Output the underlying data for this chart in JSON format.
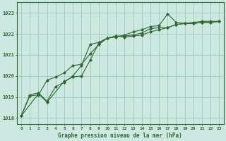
{
  "background_color": "#cce8e0",
  "grid_color": "#99ccbb",
  "line_color": "#2d6a2d",
  "title": "Graphe pression niveau de la mer (hPa)",
  "xlim": [
    -0.5,
    23.5
  ],
  "ylim": [
    1017.7,
    1023.5
  ],
  "yticks": [
    1018,
    1019,
    1020,
    1021,
    1022,
    1023
  ],
  "xticks": [
    0,
    1,
    2,
    3,
    4,
    5,
    6,
    7,
    8,
    9,
    10,
    11,
    12,
    13,
    14,
    15,
    16,
    17,
    18,
    19,
    20,
    21,
    22,
    23
  ],
  "series": [
    {
      "x": [
        0,
        1,
        2,
        3,
        4,
        5,
        6,
        7,
        8,
        9,
        10,
        11,
        12,
        13,
        14,
        15,
        16,
        17,
        18,
        19,
        20,
        21,
        22,
        23
      ],
      "y": [
        1018.1,
        1019.1,
        1019.2,
        1018.8,
        1019.5,
        1019.7,
        1020.0,
        1020.5,
        1021.5,
        1021.6,
        1021.8,
        1021.9,
        1021.85,
        1021.9,
        1021.95,
        1022.1,
        1022.2,
        1022.3,
        1022.45,
        1022.5,
        1022.5,
        1022.55,
        1022.55,
        1022.6
      ]
    },
    {
      "x": [
        0,
        1,
        2,
        3,
        4,
        5,
        6,
        7,
        8,
        9,
        10,
        11,
        12,
        13,
        14,
        15,
        16,
        17,
        18,
        19,
        20,
        21,
        22,
        23
      ],
      "y": [
        1018.1,
        1019.05,
        1019.1,
        1019.8,
        1019.95,
        1020.15,
        1020.5,
        1020.55,
        1021.05,
        1021.5,
        1021.8,
        1021.9,
        1021.9,
        1021.95,
        1022.05,
        1022.25,
        1022.3,
        1022.3,
        1022.45,
        1022.5,
        1022.5,
        1022.55,
        1022.55,
        1022.6
      ]
    },
    {
      "x": [
        0,
        2,
        3,
        5,
        6,
        7,
        8,
        9,
        10,
        11,
        12,
        13,
        14,
        15,
        16,
        17,
        18,
        19,
        20,
        21,
        22,
        23
      ],
      "y": [
        1018.1,
        1019.15,
        1018.75,
        1019.75,
        1019.95,
        1020.0,
        1020.75,
        1021.55,
        1021.8,
        1021.85,
        1021.95,
        1022.1,
        1022.2,
        1022.35,
        1022.4,
        1022.95,
        1022.55,
        1022.5,
        1022.55,
        1022.6,
        1022.6,
        1022.6
      ]
    }
  ]
}
